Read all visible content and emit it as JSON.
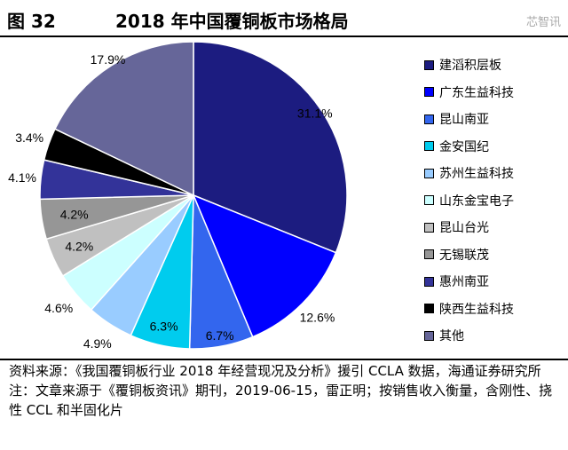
{
  "header": {
    "figure_number": "图 32",
    "title": "2018 年中国覆铜板市场格局"
  },
  "chart_data": {
    "type": "pie",
    "title": "2018 年中国覆铜板市场格局",
    "legend_position": "right",
    "categories": [
      "建滔积层板",
      "广东生益科技",
      "昆山南亚",
      "金安国纪",
      "苏州生益科技",
      "山东金宝电子",
      "昆山台光",
      "无锡联茂",
      "惠州南亚",
      "陕西生益科技",
      "其他"
    ],
    "values": [
      31.1,
      12.6,
      6.7,
      6.3,
      4.9,
      4.6,
      4.2,
      4.2,
      4.1,
      3.4,
      17.9
    ],
    "labels": [
      "31.1%",
      "12.6%",
      "6.7%",
      "6.3%",
      "4.9%",
      "4.6%",
      "4.2%",
      "4.2%",
      "4.1%",
      "3.4%",
      "17.9%"
    ],
    "colors": [
      "#1c1c80",
      "#0000ff",
      "#3366ee",
      "#00ccee",
      "#99ccff",
      "#ccffff",
      "#c0c0c0",
      "#969696",
      "#333399",
      "#000000",
      "#666699"
    ]
  },
  "notes": {
    "source": "资料来源：《我国覆铜板行业 2018 年经营现况及分析》援引 CCLA 数据，海通证券研究所",
    "note": "注：文章来源于《覆铜板资讯》期刊，2019-06-15，雷正明；按销售收入衡量，含刚性、挠性 CCL 和半固化片",
    "watermark": "芯智讯"
  }
}
